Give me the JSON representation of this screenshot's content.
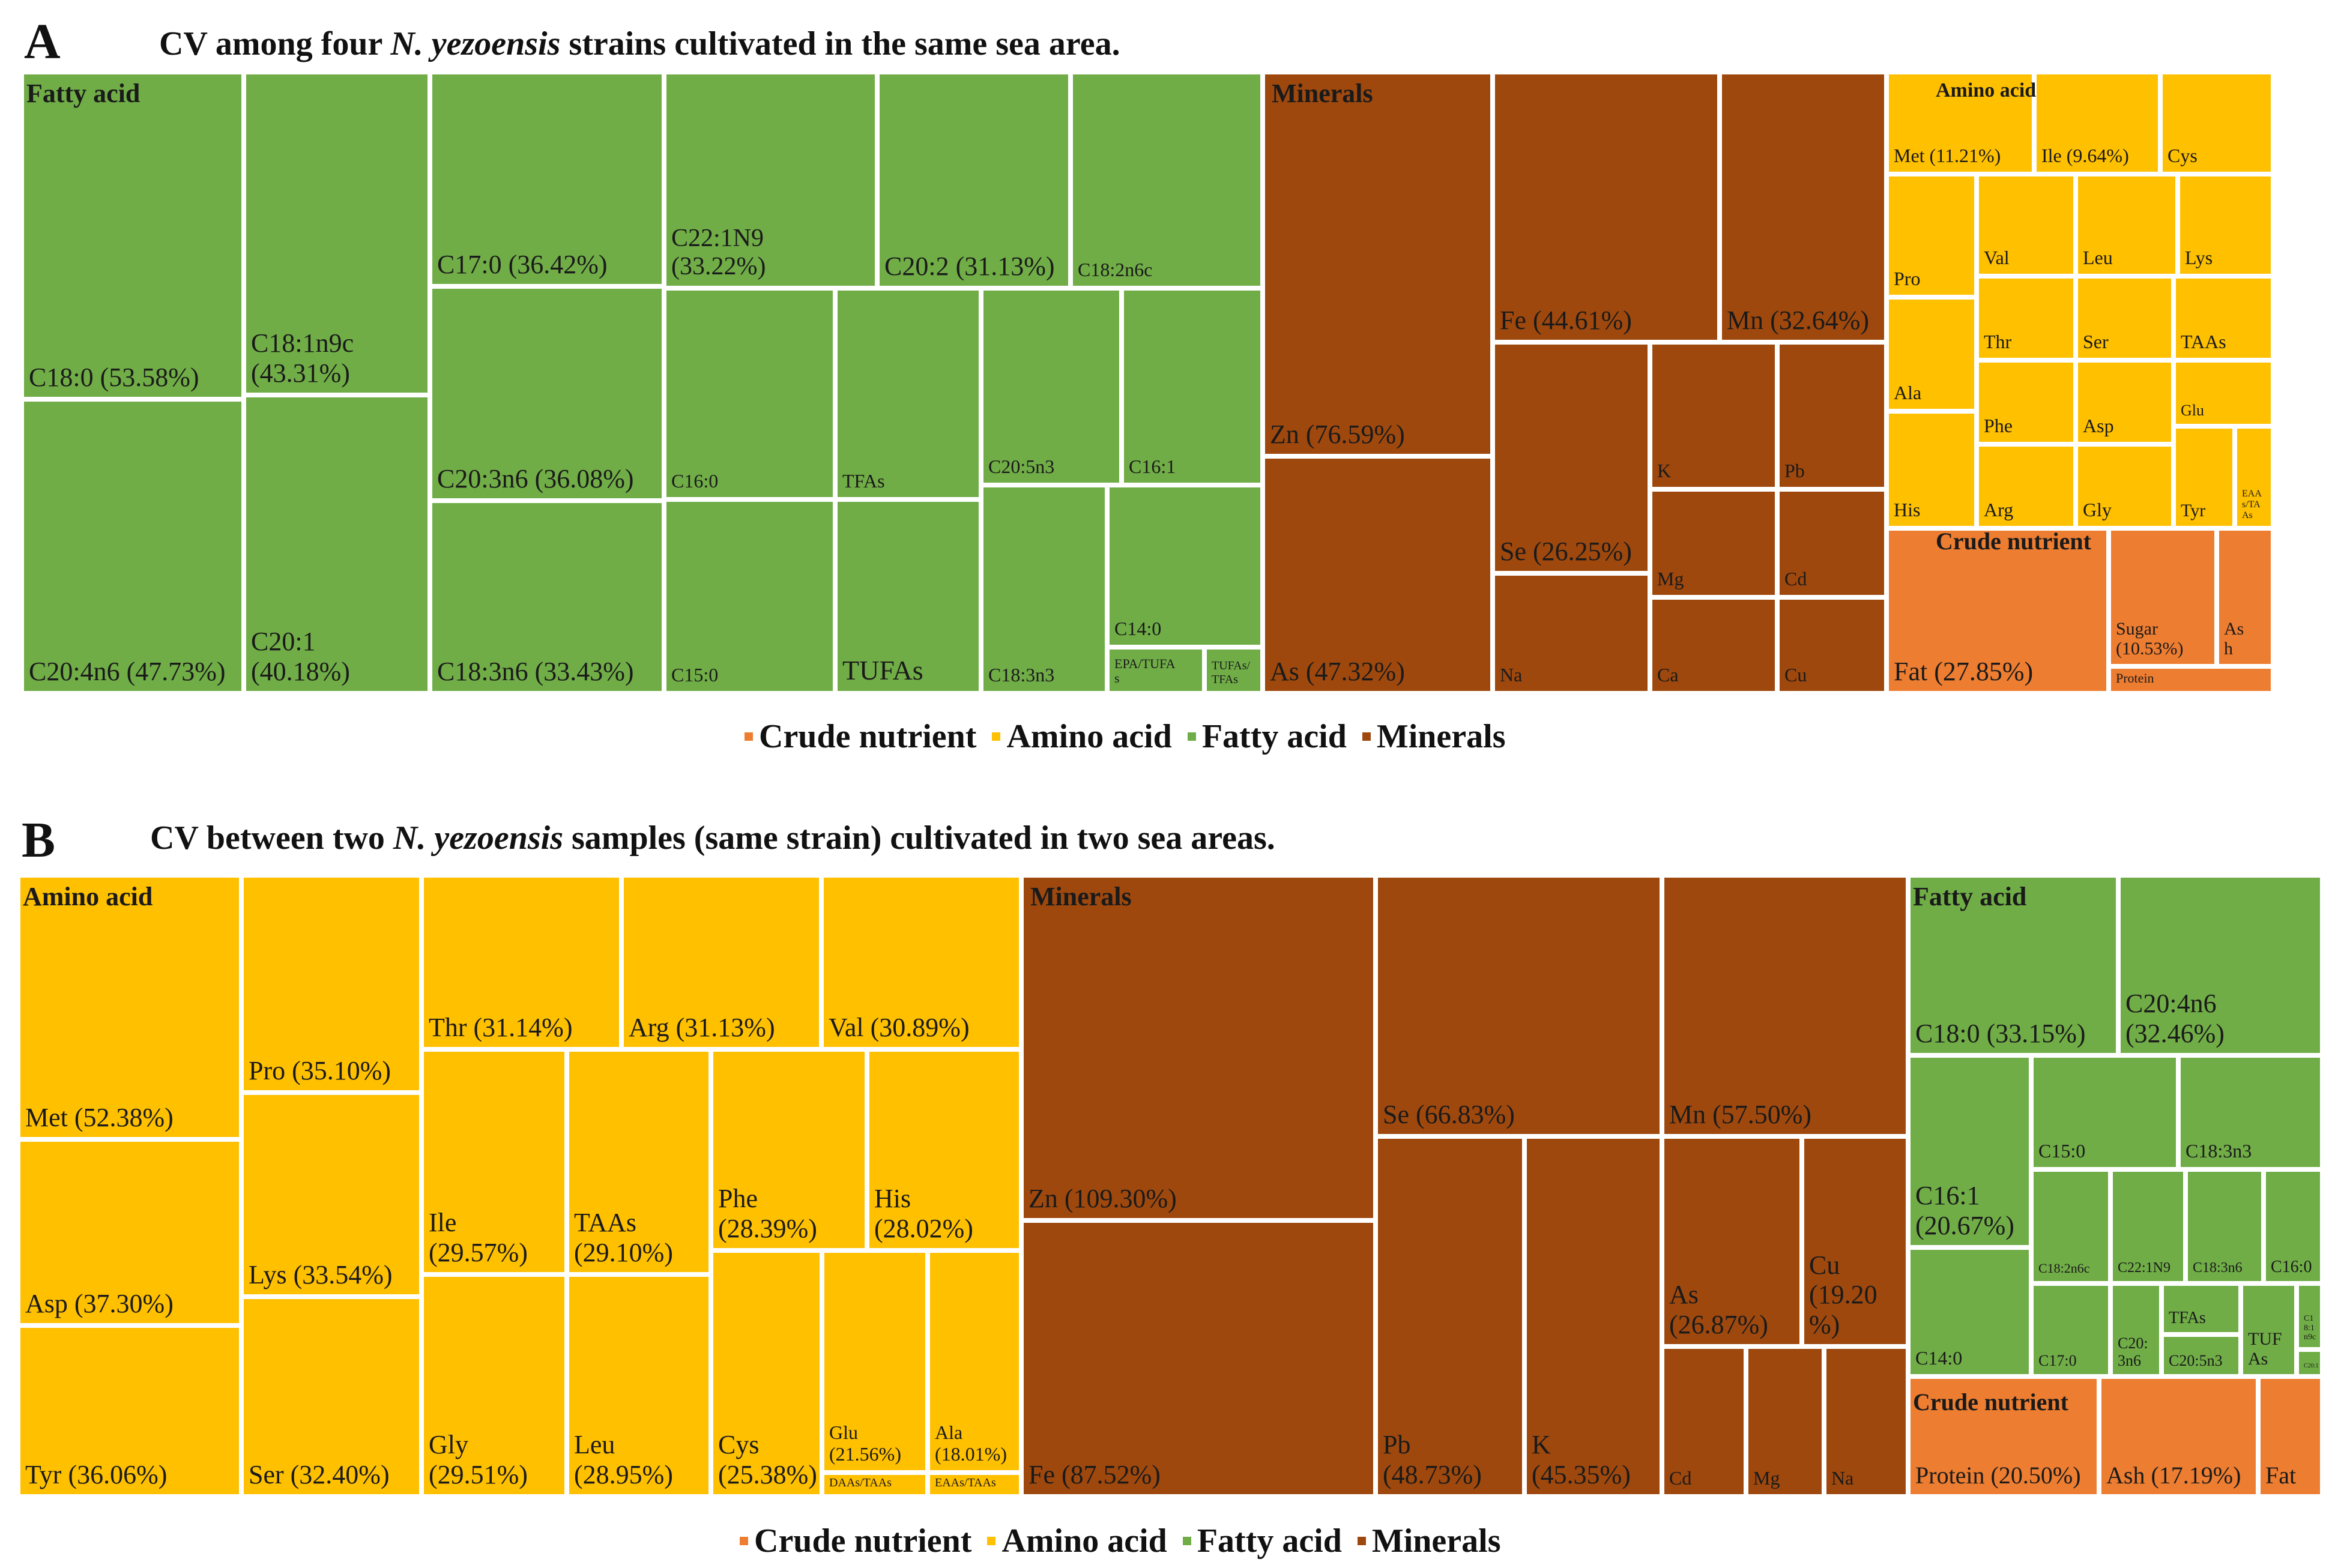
{
  "colors": {
    "crude_nutrient": "#ED7D31",
    "amino_acid": "#FFC000",
    "fatty_acid": "#70AD47",
    "minerals": "#9E480E"
  },
  "legend": [
    "Crude nutrient",
    "Amino acid",
    "Fatty acid",
    "Minerals"
  ],
  "panels": [
    {
      "letter": "A",
      "title_parts": [
        "CV among four ",
        "N. yezoensis",
        " strains cultivated in the same sea area."
      ]
    },
    {
      "letter": "B",
      "title_parts": [
        "CV between two ",
        "N. yezoensis",
        " samples (same strain) cultivated in two sea areas."
      ]
    }
  ],
  "chart_data": [
    {
      "type": "treemap",
      "title": "CV among four N. yezoensis strains cultivated in the same sea area.",
      "legend": [
        "Crude nutrient",
        "Amino acid",
        "Fatty acid",
        "Minerals"
      ],
      "groups": [
        {
          "name": "Fatty acid",
          "category": "fatty_acid",
          "items": [
            {
              "label": "C18:0 (53.58%)",
              "cv": 53.58
            },
            {
              "label": "C20:4n6 (47.73%)",
              "cv": 47.73
            },
            {
              "label": "C18:1n9c\n(43.31%)",
              "cv": 43.31
            },
            {
              "label": "C20:1\n(40.18%)",
              "cv": 40.18
            },
            {
              "label": "C17:0  (36.42%)",
              "cv": 36.42
            },
            {
              "label": "C20:3n6 (36.08%)",
              "cv": 36.08
            },
            {
              "label": "C18:3n6 (33.43%)",
              "cv": 33.43
            },
            {
              "label": "C22:1N9\n(33.22%)",
              "cv": 33.22
            },
            {
              "label": "C20:2 (31.13%)",
              "cv": 31.13
            },
            {
              "label": "C18:2n6c",
              "cv": null
            },
            {
              "label": "C16:0",
              "cv": null
            },
            {
              "label": "C15:0",
              "cv": null
            },
            {
              "label": "TFAs",
              "cv": null
            },
            {
              "label": "TUFAs",
              "cv": null
            },
            {
              "label": "C20:5n3",
              "cv": null
            },
            {
              "label": "C16:1",
              "cv": null
            },
            {
              "label": "C18:3n3",
              "cv": null
            },
            {
              "label": "C14:0",
              "cv": null
            },
            {
              "label": "EPA/TUFA\ns",
              "cv": null
            },
            {
              "label": "TUFAs/\nTFAs",
              "cv": null
            }
          ]
        },
        {
          "name": "Minerals",
          "category": "minerals",
          "items": [
            {
              "label": "Zn (76.59%)",
              "cv": 76.59
            },
            {
              "label": "As (47.32%)",
              "cv": 47.32
            },
            {
              "label": "Fe (44.61%)",
              "cv": 44.61
            },
            {
              "label": "Mn (32.64%)",
              "cv": 32.64
            },
            {
              "label": "Se (26.25%)",
              "cv": 26.25
            },
            {
              "label": "Na",
              "cv": null
            },
            {
              "label": "K",
              "cv": null
            },
            {
              "label": "Pb",
              "cv": null
            },
            {
              "label": "Mg",
              "cv": null
            },
            {
              "label": "Cd",
              "cv": null
            },
            {
              "label": "Ca",
              "cv": null
            },
            {
              "label": "Cu",
              "cv": null
            }
          ]
        },
        {
          "name": "Amino acid",
          "category": "amino_acid",
          "items": [
            {
              "label": "Met (11.21%)",
              "cv": 11.21
            },
            {
              "label": "Ile (9.64%)",
              "cv": 9.64
            },
            {
              "label": "Cys",
              "cv": null
            },
            {
              "label": "Pro",
              "cv": null
            },
            {
              "label": "Ala",
              "cv": null
            },
            {
              "label": "His",
              "cv": null
            },
            {
              "label": "Val",
              "cv": null
            },
            {
              "label": "Thr",
              "cv": null
            },
            {
              "label": "Phe",
              "cv": null
            },
            {
              "label": "Arg",
              "cv": null
            },
            {
              "label": "Leu",
              "cv": null
            },
            {
              "label": "Ser",
              "cv": null
            },
            {
              "label": "Asp",
              "cv": null
            },
            {
              "label": "Gly",
              "cv": null
            },
            {
              "label": "Lys",
              "cv": null
            },
            {
              "label": "TAAs",
              "cv": null
            },
            {
              "label": "Glu",
              "cv": null
            },
            {
              "label": "Tyr",
              "cv": null
            },
            {
              "label": "EAA\ns/TA\nAs",
              "cv": null
            }
          ]
        },
        {
          "name": "Crude nutrient",
          "category": "crude_nutrient",
          "items": [
            {
              "label": "Fat (27.85%)",
              "cv": 27.85
            },
            {
              "label": "Sugar\n(10.53%)",
              "cv": 10.53
            },
            {
              "label": "As\nh",
              "cv": null
            },
            {
              "label": "Protein",
              "cv": null
            }
          ]
        }
      ]
    },
    {
      "type": "treemap",
      "title": "CV between two N. yezoensis samples (same strain) cultivated in two sea areas.",
      "legend": [
        "Crude nutrient",
        "Amino acid",
        "Fatty acid",
        "Minerals"
      ],
      "groups": [
        {
          "name": "Amino acid",
          "category": "amino_acid",
          "items": [
            {
              "label": "Met (52.38%)",
              "cv": 52.38
            },
            {
              "label": "Asp (37.30%)",
              "cv": 37.3
            },
            {
              "label": "Tyr (36.06%)",
              "cv": 36.06
            },
            {
              "label": "Pro (35.10%)",
              "cv": 35.1
            },
            {
              "label": "Lys (33.54%)",
              "cv": 33.54
            },
            {
              "label": "Ser (32.40%)",
              "cv": 32.4
            },
            {
              "label": "Thr (31.14%)",
              "cv": 31.14
            },
            {
              "label": "Arg (31.13%)",
              "cv": 31.13
            },
            {
              "label": "Val (30.89%)",
              "cv": 30.89
            },
            {
              "label": "Ile\n(29.57%)",
              "cv": 29.57
            },
            {
              "label": "Gly\n(29.51%)",
              "cv": 29.51
            },
            {
              "label": "TAAs\n(29.10%)",
              "cv": 29.1
            },
            {
              "label": "Leu\n(28.95%)",
              "cv": 28.95
            },
            {
              "label": "Phe\n(28.39%)",
              "cv": 28.39
            },
            {
              "label": "His\n(28.02%)",
              "cv": 28.02
            },
            {
              "label": "Cys\n(25.38%)",
              "cv": 25.38
            },
            {
              "label": "Glu\n(21.56%)",
              "cv": 21.56
            },
            {
              "label": "Ala\n(18.01%)",
              "cv": 18.01
            },
            {
              "label": "DAAs/TAAs",
              "cv": null
            },
            {
              "label": "EAAs/TAAs",
              "cv": null
            }
          ]
        },
        {
          "name": "Minerals",
          "category": "minerals",
          "items": [
            {
              "label": "Zn (109.30%)",
              "cv": 109.3
            },
            {
              "label": "Fe (87.52%)",
              "cv": 87.52
            },
            {
              "label": "Se (66.83%)",
              "cv": 66.83
            },
            {
              "label": "Mn (57.50%)",
              "cv": 57.5
            },
            {
              "label": "Pb\n(48.73%)",
              "cv": 48.73
            },
            {
              "label": "K (45.35%)",
              "cv": 45.35
            },
            {
              "label": "As\n(26.87%)",
              "cv": 26.87
            },
            {
              "label": "Cu\n(19.20\n%)",
              "cv": 19.2
            },
            {
              "label": "Cd",
              "cv": null
            },
            {
              "label": "Mg",
              "cv": null
            },
            {
              "label": "Na",
              "cv": null
            }
          ]
        },
        {
          "name": "Fatty acid",
          "category": "fatty_acid",
          "items": [
            {
              "label": "C18:0 (33.15%)",
              "cv": 33.15
            },
            {
              "label": "C20:4n6\n(32.46%)",
              "cv": 32.46
            },
            {
              "label": "C16:1\n(20.67%)",
              "cv": 20.67
            },
            {
              "label": "C14:0",
              "cv": null
            },
            {
              "label": "C15:0",
              "cv": null
            },
            {
              "label": "C18:3n3",
              "cv": null
            },
            {
              "label": "C18:2n6c",
              "cv": null
            },
            {
              "label": "C17:0",
              "cv": null
            },
            {
              "label": "C22:1N9",
              "cv": null
            },
            {
              "label": "C18:3n6",
              "cv": null
            },
            {
              "label": "C16:0",
              "cv": null
            },
            {
              "label": "C20:\n3n6",
              "cv": null
            },
            {
              "label": "TFAs",
              "cv": null
            },
            {
              "label": "TUF\nAs",
              "cv": null
            },
            {
              "label": "C20:5n3",
              "cv": null
            },
            {
              "label": "C1\n8:1\nn9c",
              "cv": null
            },
            {
              "label": "C20:1",
              "cv": null
            }
          ]
        },
        {
          "name": "Crude nutrient",
          "category": "crude_nutrient",
          "items": [
            {
              "label": "Protein  (20.50%)",
              "cv": 20.5
            },
            {
              "label": "Ash (17.19%)",
              "cv": 17.19
            },
            {
              "label": "Fat",
              "cv": null
            }
          ]
        }
      ]
    }
  ]
}
